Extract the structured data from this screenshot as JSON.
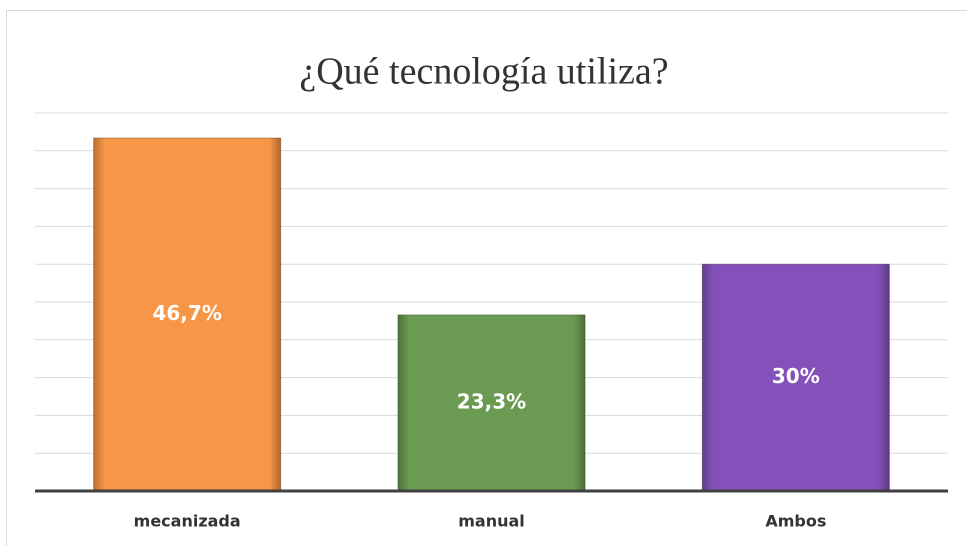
{
  "chart_data": {
    "type": "bar",
    "title": "¿Qué tecnología utiliza?",
    "categories": [
      "mecanizada",
      "manual",
      "Ambos"
    ],
    "values": [
      46.7,
      23.3,
      30
    ],
    "value_labels": [
      "46,7%",
      "23,3%",
      "30%"
    ],
    "colors": [
      "#f79646",
      "#6b9a52",
      "#8351b9"
    ],
    "ylim": [
      0,
      50
    ],
    "yticks": [
      0,
      5,
      10,
      15,
      20,
      25,
      30,
      35,
      40,
      45,
      50
    ],
    "grid": true
  }
}
